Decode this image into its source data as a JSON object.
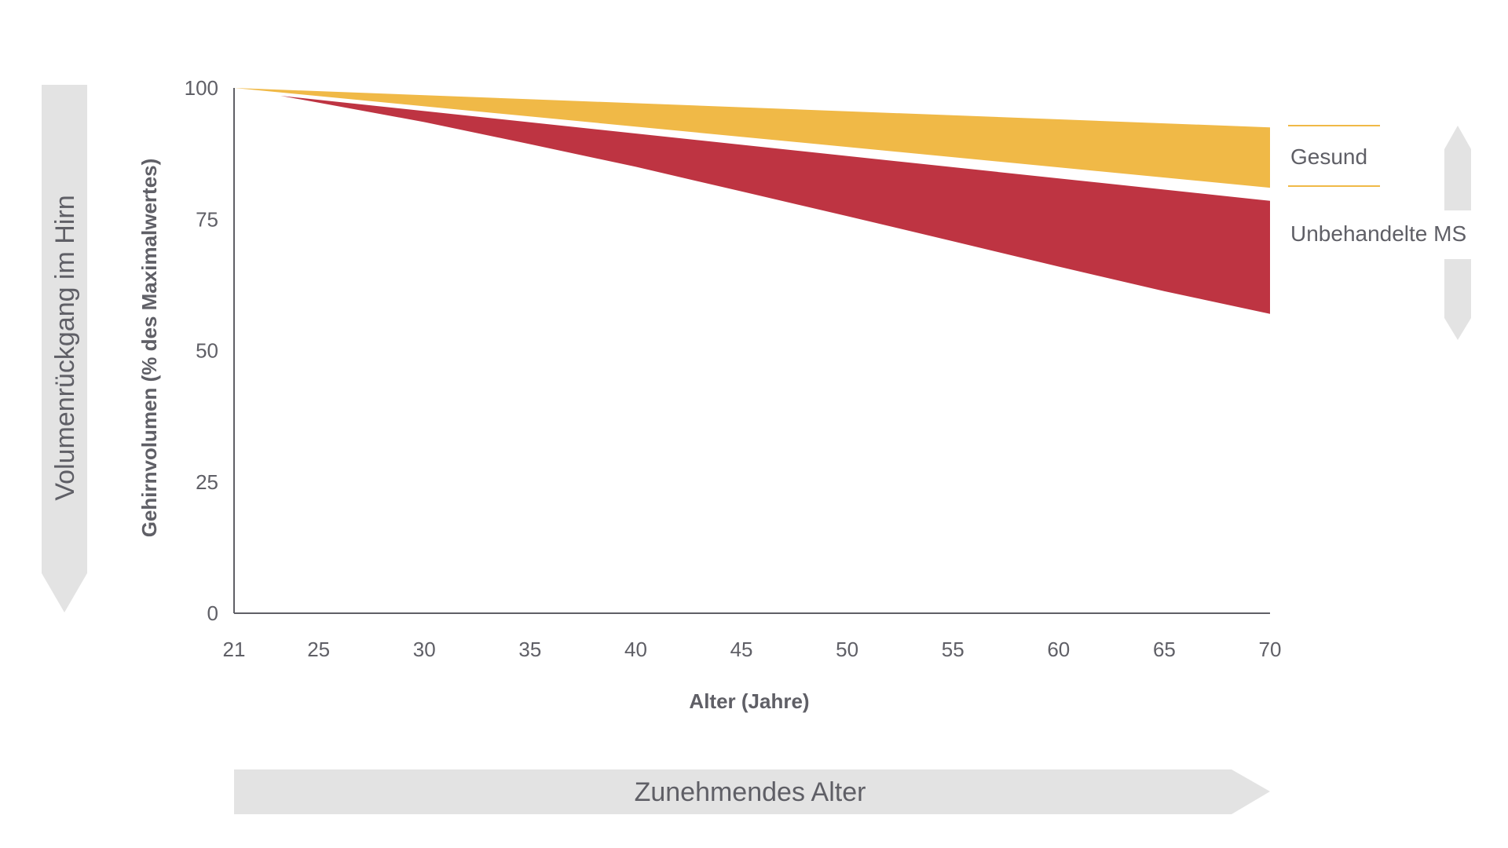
{
  "chart_data": {
    "type": "area",
    "title": "",
    "xlabel": "Alter (Jahre)",
    "ylabel": "Gehirnvolumen (% des Maximalwertes)",
    "x_ticks": [
      "21",
      "25",
      "30",
      "35",
      "40",
      "45",
      "50",
      "55",
      "60",
      "65",
      "70"
    ],
    "y_ticks": [
      "0",
      "25",
      "50",
      "75",
      "100"
    ],
    "xlim": [
      21,
      70
    ],
    "ylim": [
      0,
      100
    ],
    "grid": false,
    "legend_position": "right",
    "series": [
      {
        "name": "Gesund",
        "color": "#F0B947",
        "upper": [
          [
            21,
            100
          ],
          [
            70,
            92.5
          ]
        ],
        "lower": [
          [
            21,
            100
          ],
          [
            70,
            81
          ]
        ]
      },
      {
        "name": "Unbehandelte MS",
        "color": "#BE3442",
        "upper": [
          [
            23.2,
            98.5
          ],
          [
            70,
            78.5
          ]
        ],
        "lower": [
          [
            23.2,
            98.5
          ],
          [
            25,
            97.2
          ],
          [
            30,
            93.5
          ],
          [
            35,
            89.3
          ],
          [
            40,
            85
          ],
          [
            45,
            80.3
          ],
          [
            50,
            75.6
          ],
          [
            55,
            70.8
          ],
          [
            60,
            66
          ],
          [
            65,
            61.3
          ],
          [
            70,
            57
          ]
        ]
      }
    ],
    "legend_line_color": "#F0B947",
    "range_arrow_color": "#E3E3E3"
  },
  "annotations": {
    "left_arrow_label": "Volumenrückgang im Hirn",
    "bottom_arrow_label": "Zunehmendes Alter"
  }
}
